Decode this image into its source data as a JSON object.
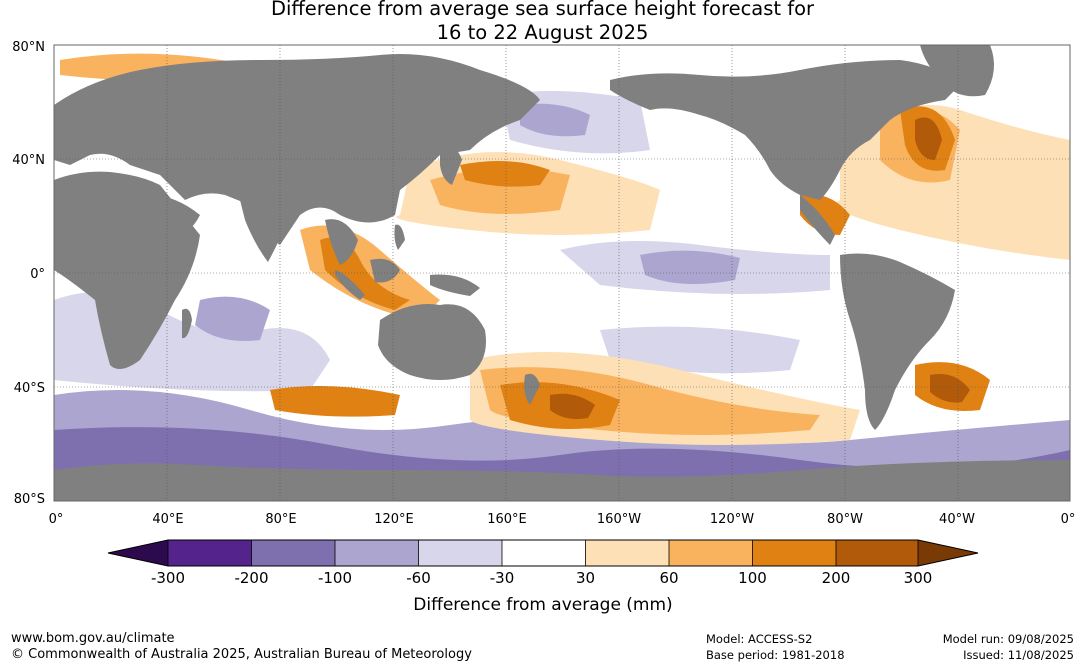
{
  "title": {
    "line1": "Difference from average sea surface height forecast for",
    "line2": "16 to 22 August 2025"
  },
  "map": {
    "lat_labels": [
      "80°N",
      "40°N",
      "0°",
      "40°S",
      "80°S"
    ],
    "lon_labels": [
      "0°",
      "40°E",
      "80°E",
      "120°E",
      "160°E",
      "160°W",
      "120°W",
      "80°W",
      "40°W",
      "0°"
    ],
    "land_color": "#808080",
    "colors": {
      "neg300": "#2d0a4e",
      "neg200": "#54248c",
      "neg100": "#7e6fae",
      "neg60": "#aba5cf",
      "neg30": "#d7d6ea",
      "zero": "#ffffff",
      "pos30": "#fde0b6",
      "pos60": "#f9b35f",
      "pos100": "#e08114",
      "pos200": "#b05a0a",
      "pos300": "#7a3a05"
    }
  },
  "colorbar": {
    "ticks": [
      "-300",
      "-200",
      "-100",
      "-60",
      "-30",
      "30",
      "60",
      "100",
      "200",
      "300"
    ],
    "label": "Difference from average (mm)"
  },
  "footer": {
    "url": "www.bom.gov.au/climate",
    "copyright": "© Commonwealth of Australia 2025, Australian Bureau of Meteorology",
    "model": "Model: ACCESS-S2",
    "base_period": "Base period: 1981-2018",
    "model_run": "Model run: 09/08/2025",
    "issued": "Issued: 11/08/2025"
  }
}
